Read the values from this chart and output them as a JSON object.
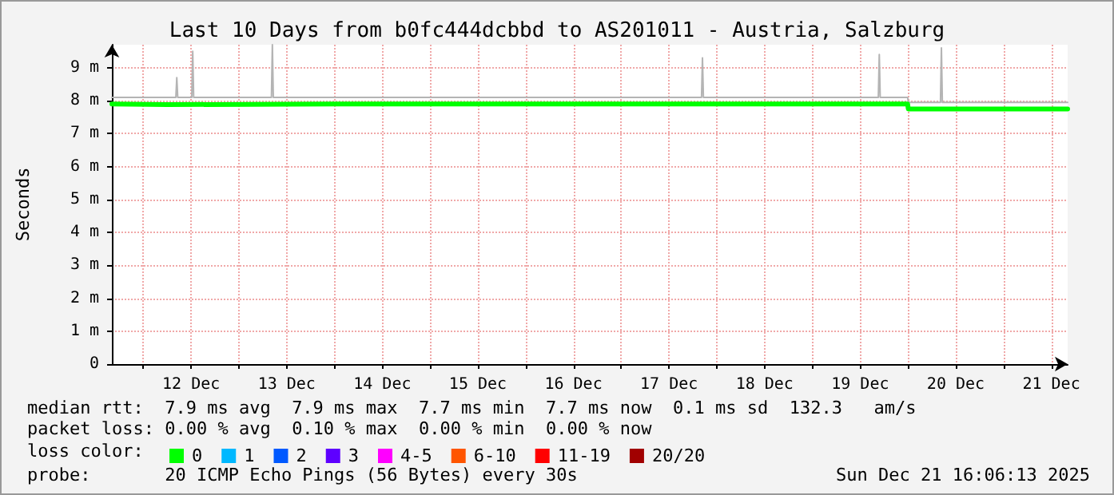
{
  "chart_data": {
    "type": "line",
    "title": "Last 10 Days from b0fc444dcbbd to AS201011 - Austria, Salzburg",
    "ylabel": "Seconds",
    "legend_title": "loss color:",
    "legend": "bottom",
    "grid": true,
    "marker": "none",
    "line_style": "solid",
    "xlim": [
      "2025-12-11T16:06",
      "2025-12-21T16:06"
    ],
    "xticks": [
      {
        "value": "2025-12-12T00:00",
        "label": null
      },
      {
        "value": "2025-12-12T12:00",
        "label": "12 Dec"
      },
      {
        "value": "2025-12-13T00:00",
        "label": null
      },
      {
        "value": "2025-12-13T12:00",
        "label": "13 Dec"
      },
      {
        "value": "2025-12-14T00:00",
        "label": null
      },
      {
        "value": "2025-12-14T12:00",
        "label": "14 Dec"
      },
      {
        "value": "2025-12-15T00:00",
        "label": null
      },
      {
        "value": "2025-12-15T12:00",
        "label": "15 Dec"
      },
      {
        "value": "2025-12-16T00:00",
        "label": null
      },
      {
        "value": "2025-12-16T12:00",
        "label": "16 Dec"
      },
      {
        "value": "2025-12-17T00:00",
        "label": null
      },
      {
        "value": "2025-12-17T12:00",
        "label": "17 Dec"
      },
      {
        "value": "2025-12-18T00:00",
        "label": null
      },
      {
        "value": "2025-12-18T12:00",
        "label": "18 Dec"
      },
      {
        "value": "2025-12-19T00:00",
        "label": null
      },
      {
        "value": "2025-12-19T12:00",
        "label": "19 Dec"
      },
      {
        "value": "2025-12-20T00:00",
        "label": null
      },
      {
        "value": "2025-12-20T12:00",
        "label": "20 Dec"
      },
      {
        "value": "2025-12-21T00:00",
        "label": null
      },
      {
        "value": "2025-12-21T12:00",
        "label": "21 Dec"
      }
    ],
    "ylim": [
      0,
      9.7
    ],
    "yticks": [
      0,
      {
        "value": 1,
        "label": "1 m"
      },
      {
        "value": 2,
        "label": "2 m"
      },
      {
        "value": 3,
        "label": "3 m"
      },
      {
        "value": 4,
        "label": "4 m"
      },
      {
        "value": 5,
        "label": "5 m"
      },
      {
        "value": 6,
        "label": "6 m"
      },
      {
        "value": 7,
        "label": "7 m"
      },
      {
        "value": 8,
        "label": "8 m"
      },
      {
        "value": 9,
        "label": "9 m"
      }
    ],
    "series": [
      {
        "color": "#b4b4b4",
        "x": [
          "2025-12-11T16:06",
          "2025-12-12T08:10",
          "2025-12-12T08:24",
          "2025-12-12T08:38",
          "2025-12-12T12:10",
          "2025-12-12T12:24",
          "2025-12-12T12:38",
          "2025-12-13T08:10",
          "2025-12-13T08:24",
          "2025-12-13T08:38",
          "2025-12-17T20:10",
          "2025-12-17T20:24",
          "2025-12-17T20:38",
          "2025-12-19T16:34",
          "2025-12-19T16:48",
          "2025-12-19T17:02",
          "2025-12-19T23:55",
          "2025-12-20T00:05",
          "2025-12-20T08:10",
          "2025-12-20T08:24",
          "2025-12-20T08:38",
          "2025-12-21T16:06"
        ],
        "values": [
          8.1,
          8.1,
          8.7,
          8.1,
          8.1,
          9.5,
          8.1,
          8.1,
          9.7,
          8.1,
          8.1,
          9.3,
          8.1,
          8.1,
          9.4,
          8.1,
          8.1,
          7.95,
          7.95,
          9.6,
          7.95,
          7.95
        ]
      },
      {
        "name": "0",
        "color": "#00ff00",
        "x": [
          "2025-12-11T16:06",
          "2025-12-12T06:00",
          "2025-12-14T00:00",
          "2025-12-16T00:00",
          "2025-12-18T00:00",
          "2025-12-19T23:55",
          "2025-12-20T00:05",
          "2025-12-21T16:06"
        ],
        "values": [
          7.9,
          7.88,
          7.9,
          7.9,
          7.9,
          7.9,
          7.75,
          7.75
        ]
      },
      {
        "name": "1",
        "color": "#00b8ff"
      },
      {
        "name": "2",
        "color": "#0059ff"
      },
      {
        "name": "3",
        "color": "#5e00ff"
      },
      {
        "name": "4-5",
        "color": "#ff00ff"
      },
      {
        "name": "6-10",
        "color": "#ff5500"
      },
      {
        "name": "11-19",
        "color": "#ff0000"
      },
      {
        "name": "20/20",
        "color": "#a10000"
      }
    ],
    "annotations": [
      "median rtt:  7.9 ms avg  7.9 ms max  7.7 ms min  7.7 ms now  0.1 ms sd  132.3   am/s",
      "packet loss: 0.00 % avg  0.10 % max  0.00 % min  0.00 % now",
      "probe:       20 ICMP Echo Pings (56 Bytes) every 30s",
      "Sun Dec 21 16:06:13 2025"
    ]
  }
}
